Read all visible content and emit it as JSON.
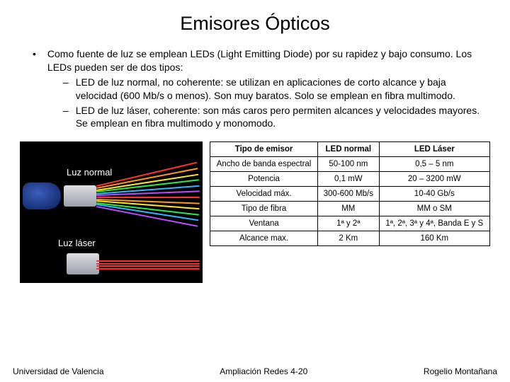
{
  "title": "Emisores Ópticos",
  "bullet": {
    "intro": "Como fuente de luz se emplean LEDs (Light Emitting Diode) por su rapidez y bajo consumo. Los LEDs pueden ser de dos tipos:",
    "sub1": "LED de luz normal, no coherente: se utilizan en aplicaciones de corto alcance y baja velocidad (600 Mb/s o menos). Son muy baratos. Solo se emplean en fibra multimodo.",
    "sub2": "LED de luz láser, coherente: son más caros pero permiten alcances y velocidades mayores. Se emplean en fibra multimodo y monomodo."
  },
  "figure": {
    "label_normal": "Luz normal",
    "label_laser": "Luz láser",
    "wave_colors_top": [
      "#ff3030",
      "#ff9a1f",
      "#ffe81f",
      "#2fe84a",
      "#2fb7ff",
      "#b84dff"
    ],
    "wave_color_bottom": "#ff2a2a",
    "background": "#000000"
  },
  "table": {
    "headers": [
      "Tipo de emisor",
      "LED normal",
      "LED Láser"
    ],
    "rows": [
      [
        "Ancho de banda espectral",
        "50-100 nm",
        "0,5 – 5 nm"
      ],
      [
        "Potencia",
        "0,1 mW",
        "20 – 3200 mW"
      ],
      [
        "Velocidad máx.",
        "300-600 Mb/s",
        "10-40 Gb/s"
      ],
      [
        "Tipo de fibra",
        "MM",
        "MM o SM"
      ],
      [
        "Ventana",
        "1ª y 2ª",
        "1ª, 2ª, 3ª y 4ª, Banda E y S"
      ],
      [
        "Alcance max.",
        "2 Km",
        "160 Km"
      ]
    ]
  },
  "footer": {
    "left": "Universidad de Valencia",
    "center": "Ampliación Redes 4-20",
    "right": "Rogelio Montañana"
  }
}
